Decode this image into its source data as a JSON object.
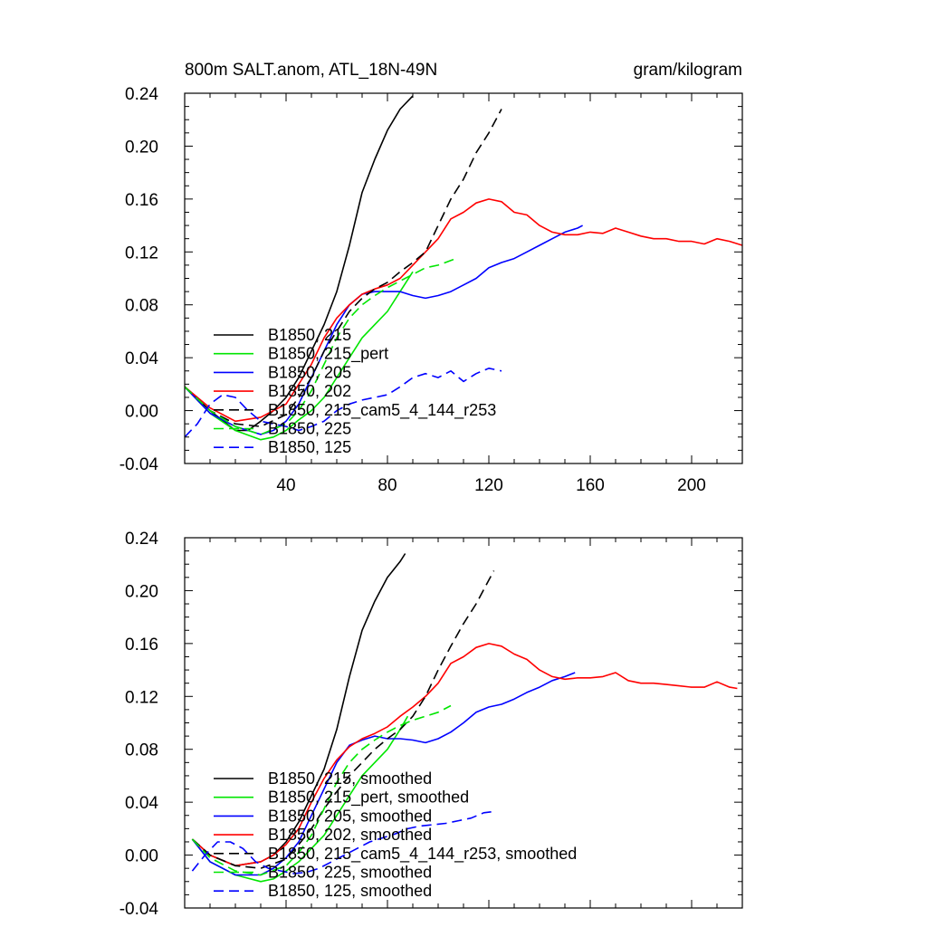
{
  "chart_data": [
    {
      "type": "line",
      "title": "800m SALT.anom, ATL_18N-49N",
      "units": "gram/kilogram",
      "xlim": [
        0,
        220
      ],
      "ylim": [
        -0.04,
        0.24
      ],
      "xticks": [
        "40",
        "80",
        "120",
        "160",
        "200"
      ],
      "yticks": [
        "-0.04",
        "0.00",
        "0.04",
        "0.08",
        "0.12",
        "0.16",
        "0.20",
        "0.24"
      ],
      "legend_position": "lower-left",
      "series": [
        {
          "name": "B1850, 215",
          "color": "#000000",
          "dash": "solid",
          "x": [
            0,
            10,
            20,
            25,
            30,
            35,
            40,
            45,
            50,
            55,
            60,
            65,
            70,
            75,
            80,
            85,
            90
          ],
          "y": [
            0.018,
            0.0,
            -0.015,
            -0.015,
            -0.008,
            0.0,
            0.01,
            0.025,
            0.045,
            0.065,
            0.09,
            0.125,
            0.165,
            0.19,
            0.212,
            0.228,
            0.238
          ]
        },
        {
          "name": "B1850, 215_pert",
          "color": "#00e600",
          "dash": "solid",
          "x": [
            0,
            10,
            20,
            30,
            35,
            40,
            45,
            50,
            55,
            60,
            65,
            70,
            75,
            80,
            85,
            90
          ],
          "y": [
            0.018,
            -0.002,
            -0.015,
            -0.022,
            -0.02,
            -0.015,
            -0.007,
            0.0,
            0.01,
            0.025,
            0.04,
            0.055,
            0.065,
            0.075,
            0.09,
            0.105
          ]
        },
        {
          "name": "B1850, 205",
          "color": "#0000ff",
          "dash": "solid",
          "x": [
            0,
            10,
            20,
            30,
            35,
            40,
            45,
            50,
            55,
            60,
            65,
            70,
            75,
            80,
            85,
            90,
            95,
            100,
            105,
            110,
            115,
            120,
            125,
            130,
            135,
            140,
            145,
            150,
            155,
            157
          ],
          "y": [
            0.018,
            -0.002,
            -0.012,
            -0.018,
            -0.015,
            -0.008,
            0.005,
            0.025,
            0.045,
            0.065,
            0.08,
            0.088,
            0.09,
            0.09,
            0.09,
            0.087,
            0.085,
            0.087,
            0.09,
            0.095,
            0.1,
            0.108,
            0.112,
            0.115,
            0.12,
            0.125,
            0.13,
            0.135,
            0.138,
            0.14
          ]
        },
        {
          "name": "B1850, 202",
          "color": "#ff0000",
          "dash": "solid",
          "x": [
            0,
            10,
            20,
            30,
            40,
            45,
            50,
            55,
            60,
            65,
            70,
            75,
            80,
            85,
            90,
            95,
            100,
            105,
            110,
            115,
            120,
            125,
            130,
            135,
            140,
            145,
            150,
            155,
            160,
            165,
            170,
            175,
            180,
            185,
            190,
            195,
            200,
            205,
            210,
            215,
            220
          ],
          "y": [
            0.018,
            0.002,
            -0.008,
            -0.005,
            0.005,
            0.02,
            0.035,
            0.055,
            0.07,
            0.08,
            0.088,
            0.092,
            0.095,
            0.1,
            0.11,
            0.12,
            0.13,
            0.145,
            0.15,
            0.157,
            0.16,
            0.158,
            0.15,
            0.148,
            0.14,
            0.135,
            0.133,
            0.133,
            0.135,
            0.134,
            0.138,
            0.135,
            0.132,
            0.13,
            0.13,
            0.128,
            0.128,
            0.126,
            0.13,
            0.128,
            0.125
          ]
        },
        {
          "name": "B1850, 215_cam5_4_144_r253",
          "color": "#000000",
          "dash": "dashed",
          "x": [
            0,
            10,
            20,
            30,
            40,
            45,
            50,
            55,
            60,
            65,
            70,
            75,
            80,
            85,
            90,
            95,
            100,
            105,
            110,
            115,
            120,
            125
          ],
          "y": [
            0.018,
            0.0,
            -0.01,
            -0.012,
            -0.003,
            0.01,
            0.025,
            0.045,
            0.06,
            0.075,
            0.085,
            0.092,
            0.097,
            0.105,
            0.112,
            0.12,
            0.14,
            0.16,
            0.175,
            0.195,
            0.21,
            0.228
          ]
        },
        {
          "name": "B1850, 225",
          "color": "#00e600",
          "dash": "dashed",
          "x": [
            0,
            10,
            20,
            30,
            40,
            45,
            50,
            55,
            60,
            65,
            70,
            75,
            80,
            85,
            90,
            95,
            100,
            107
          ],
          "y": [
            0.018,
            0.0,
            -0.012,
            -0.018,
            -0.01,
            0.0,
            0.015,
            0.035,
            0.055,
            0.07,
            0.08,
            0.087,
            0.093,
            0.098,
            0.103,
            0.108,
            0.11,
            0.115
          ]
        },
        {
          "name": "B1850, 125",
          "color": "#0000ff",
          "dash": "dashed",
          "x": [
            0,
            5,
            10,
            15,
            20,
            25,
            30,
            35,
            40,
            45,
            50,
            55,
            60,
            65,
            70,
            75,
            80,
            85,
            90,
            95,
            100,
            105,
            110,
            115,
            120,
            125
          ],
          "y": [
            -0.02,
            -0.01,
            0.005,
            0.012,
            0.01,
            0.0,
            -0.008,
            -0.01,
            -0.012,
            -0.015,
            -0.012,
            -0.008,
            0.0,
            0.005,
            0.008,
            0.01,
            0.012,
            0.018,
            0.025,
            0.028,
            0.025,
            0.03,
            0.022,
            0.028,
            0.032,
            0.03
          ]
        }
      ]
    },
    {
      "type": "line",
      "xlim": [
        0,
        220
      ],
      "ylim": [
        -0.04,
        0.24
      ],
      "xticks": [],
      "yticks": [
        "-0.04",
        "0.00",
        "0.04",
        "0.08",
        "0.12",
        "0.16",
        "0.20",
        "0.24"
      ],
      "legend_position": "lower-left",
      "series": [
        {
          "name": "B1850, 215, smoothed",
          "color": "#000000",
          "dash": "solid",
          "x": [
            3,
            10,
            20,
            30,
            35,
            40,
            45,
            50,
            55,
            60,
            65,
            70,
            75,
            80,
            85,
            87
          ],
          "y": [
            0.012,
            0.0,
            -0.008,
            -0.005,
            0.0,
            0.01,
            0.025,
            0.045,
            0.065,
            0.095,
            0.135,
            0.17,
            0.192,
            0.21,
            0.222,
            0.228
          ]
        },
        {
          "name": "B1850, 215_pert, smoothed",
          "color": "#00e600",
          "dash": "solid",
          "x": [
            3,
            10,
            20,
            30,
            35,
            40,
            45,
            50,
            55,
            60,
            65,
            70,
            75,
            80,
            85,
            88
          ],
          "y": [
            0.012,
            -0.005,
            -0.015,
            -0.02,
            -0.018,
            -0.012,
            -0.005,
            0.005,
            0.015,
            0.03,
            0.045,
            0.06,
            0.07,
            0.08,
            0.095,
            0.105
          ]
        },
        {
          "name": "B1850, 205, smoothed",
          "color": "#0000ff",
          "dash": "solid",
          "x": [
            3,
            10,
            20,
            30,
            35,
            40,
            45,
            50,
            55,
            60,
            65,
            70,
            75,
            80,
            85,
            90,
            95,
            100,
            105,
            110,
            115,
            120,
            125,
            130,
            135,
            140,
            145,
            150,
            154
          ],
          "y": [
            0.012,
            -0.005,
            -0.015,
            -0.015,
            -0.01,
            -0.002,
            0.01,
            0.03,
            0.05,
            0.07,
            0.083,
            0.087,
            0.09,
            0.088,
            0.088,
            0.087,
            0.085,
            0.088,
            0.093,
            0.1,
            0.108,
            0.112,
            0.114,
            0.118,
            0.123,
            0.127,
            0.132,
            0.135,
            0.138
          ]
        },
        {
          "name": "B1850, 202, smoothed",
          "color": "#ff0000",
          "dash": "solid",
          "x": [
            3,
            10,
            20,
            30,
            35,
            40,
            45,
            50,
            55,
            60,
            65,
            70,
            75,
            80,
            85,
            90,
            95,
            100,
            105,
            110,
            115,
            120,
            125,
            130,
            135,
            140,
            145,
            150,
            155,
            160,
            165,
            170,
            175,
            180,
            185,
            190,
            195,
            200,
            205,
            210,
            215,
            218
          ],
          "y": [
            0.012,
            0.0,
            -0.008,
            -0.005,
            0.0,
            0.008,
            0.02,
            0.04,
            0.058,
            0.072,
            0.082,
            0.088,
            0.092,
            0.097,
            0.105,
            0.112,
            0.12,
            0.13,
            0.145,
            0.15,
            0.157,
            0.16,
            0.158,
            0.152,
            0.148,
            0.14,
            0.135,
            0.133,
            0.134,
            0.134,
            0.135,
            0.138,
            0.132,
            0.13,
            0.13,
            0.129,
            0.128,
            0.127,
            0.127,
            0.131,
            0.127,
            0.126
          ]
        },
        {
          "name": "B1850, 215_cam5_4_144_r253, smoothed",
          "color": "#000000",
          "dash": "dashed",
          "x": [
            3,
            10,
            20,
            30,
            40,
            45,
            50,
            55,
            60,
            65,
            70,
            75,
            80,
            85,
            90,
            95,
            100,
            105,
            110,
            115,
            120,
            122
          ],
          "y": [
            0.012,
            0.0,
            -0.008,
            -0.01,
            -0.003,
            0.008,
            0.02,
            0.035,
            0.048,
            0.06,
            0.07,
            0.08,
            0.088,
            0.095,
            0.105,
            0.12,
            0.14,
            0.158,
            0.175,
            0.19,
            0.208,
            0.215
          ]
        },
        {
          "name": "B1850, 225, smoothed",
          "color": "#00e600",
          "dash": "dashed",
          "x": [
            3,
            10,
            20,
            30,
            40,
            45,
            50,
            55,
            60,
            65,
            70,
            75,
            80,
            85,
            90,
            95,
            100,
            105
          ],
          "y": [
            0.012,
            -0.002,
            -0.012,
            -0.015,
            -0.008,
            0.002,
            0.015,
            0.035,
            0.055,
            0.07,
            0.08,
            0.087,
            0.093,
            0.098,
            0.102,
            0.105,
            0.108,
            0.113
          ]
        },
        {
          "name": "B1850, 125, smoothed",
          "color": "#0000ff",
          "dash": "dashed",
          "x": [
            3,
            8,
            13,
            18,
            23,
            28,
            33,
            38,
            43,
            48,
            53,
            58,
            63,
            68,
            73,
            78,
            83,
            88,
            93,
            98,
            103,
            108,
            113,
            118,
            122
          ],
          "y": [
            -0.012,
            0.0,
            0.01,
            0.01,
            0.005,
            -0.005,
            -0.01,
            -0.012,
            -0.014,
            -0.013,
            -0.01,
            -0.005,
            0.0,
            0.005,
            0.01,
            0.013,
            0.016,
            0.02,
            0.022,
            0.023,
            0.024,
            0.026,
            0.028,
            0.032,
            0.033
          ]
        }
      ]
    }
  ]
}
